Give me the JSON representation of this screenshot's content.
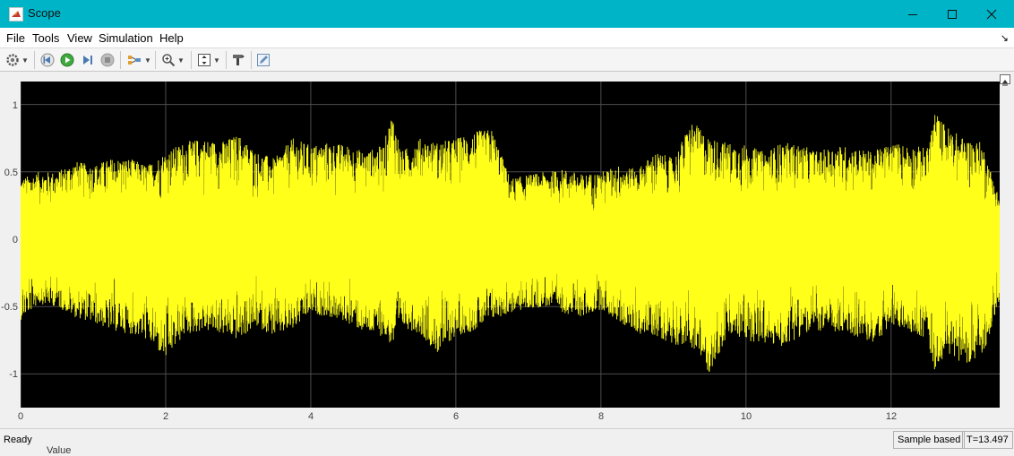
{
  "window": {
    "title": "Scope"
  },
  "menu": {
    "items": [
      "File",
      "Tools",
      "View",
      "Simulation",
      "Help"
    ],
    "corner": "↘"
  },
  "toolbar": {
    "buttons": [
      "settings-icon",
      "step-back-icon",
      "run-icon",
      "step-forward-icon",
      "stop-icon",
      "highlight-icon",
      "zoom-icon",
      "scale-axes-icon",
      "style-icon",
      "edit-icon"
    ]
  },
  "plot": {
    "background": "#000000",
    "trace_color": "#ffff1a",
    "grid_color": "#4d4d4d",
    "xticks": [
      "0",
      "2",
      "4",
      "6",
      "8",
      "10",
      "12"
    ],
    "yticks": [
      "1",
      "0.5",
      "0",
      "-0.5",
      "-1"
    ]
  },
  "chart_data": {
    "type": "line",
    "title": "",
    "xlabel": "",
    "ylabel": "",
    "xlim": [
      0,
      13.497
    ],
    "ylim": [
      -1.25,
      1.17
    ],
    "grid": true,
    "series": [
      {
        "x": [
          0,
          0.25,
          0.5,
          0.75,
          1,
          1.25,
          1.5,
          1.75,
          2,
          2.25,
          2.5,
          2.75,
          3,
          3.25,
          3.5,
          3.75,
          4,
          4.25,
          4.5,
          4.75,
          5,
          5.125,
          5.25,
          5.5,
          5.75,
          6,
          6.25,
          6.5,
          6.75,
          7,
          7.25,
          7.5,
          7.75,
          8,
          8.25,
          8.5,
          8.75,
          9,
          9.25,
          9.5,
          9.75,
          10,
          10.25,
          10.5,
          10.75,
          11,
          11.25,
          11.5,
          11.75,
          12,
          12.25,
          12.5,
          12.6,
          12.75,
          13,
          13.25,
          13.497
        ],
        "upper": [
          0.45,
          0.5,
          0.5,
          0.58,
          0.55,
          0.6,
          0.6,
          0.55,
          0.65,
          0.72,
          0.75,
          0.72,
          0.78,
          0.65,
          0.6,
          0.75,
          0.7,
          0.72,
          0.7,
          0.65,
          0.7,
          0.95,
          0.65,
          0.75,
          0.72,
          0.75,
          0.8,
          0.82,
          0.45,
          0.48,
          0.5,
          0.52,
          0.48,
          0.5,
          0.55,
          0.52,
          0.65,
          0.6,
          0.88,
          0.75,
          0.72,
          0.7,
          0.65,
          0.72,
          0.7,
          0.65,
          0.7,
          0.68,
          0.65,
          0.72,
          0.7,
          0.68,
          0.95,
          0.85,
          0.75,
          0.72,
          0.3
        ],
        "lower": [
          -0.6,
          -0.48,
          -0.5,
          -0.58,
          -0.62,
          -0.68,
          -0.7,
          -0.75,
          -0.9,
          -0.72,
          -0.68,
          -0.7,
          -0.75,
          -0.65,
          -0.72,
          -0.68,
          -0.55,
          -0.58,
          -0.62,
          -0.7,
          -0.72,
          -0.8,
          -0.65,
          -0.7,
          -0.85,
          -0.72,
          -0.68,
          -0.6,
          -0.55,
          -0.52,
          -0.5,
          -0.55,
          -0.58,
          -0.52,
          -0.62,
          -0.7,
          -0.72,
          -0.78,
          -0.8,
          -1.0,
          -0.72,
          -0.75,
          -0.78,
          -0.8,
          -0.72,
          -0.68,
          -0.7,
          -0.72,
          -0.78,
          -0.65,
          -0.68,
          -0.75,
          -0.98,
          -0.85,
          -0.92,
          -0.9,
          -0.45
        ]
      }
    ]
  },
  "status": {
    "state": "Ready",
    "sample": "Sample based",
    "time": "T=13.497"
  },
  "behind": {
    "peek_text": "Value"
  }
}
